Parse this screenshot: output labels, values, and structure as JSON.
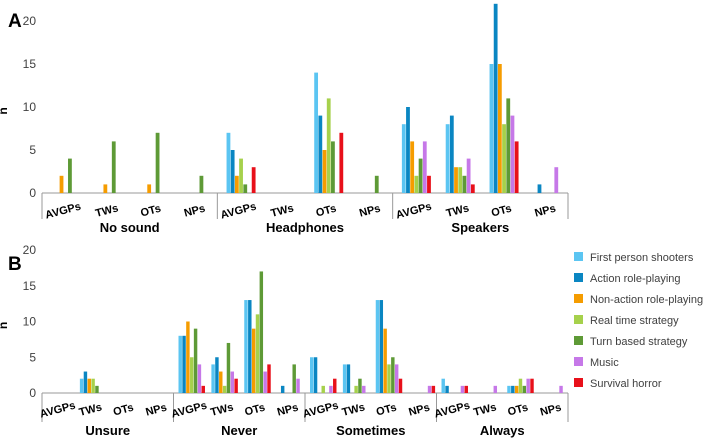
{
  "colors": {
    "series": [
      "#5BC5F2",
      "#0A86C2",
      "#F59C00",
      "#A6D14C",
      "#5E9A36",
      "#C678E8",
      "#E8101A"
    ],
    "axis": "#999999",
    "grid": "#d9d9d9",
    "text": "#404040",
    "heading": "#000000"
  },
  "chart_data": [
    {
      "panel_label": "A",
      "type": "bar",
      "ylabel": "n",
      "ylim": [
        0,
        20
      ],
      "yticks": [
        "0",
        "5",
        "10",
        "15",
        "20"
      ],
      "groups": [
        {
          "label": "No sound",
          "categories": [
            {
              "label": "AVGPs",
              "values": [
                0,
                0,
                2,
                0,
                4,
                0,
                0
              ]
            },
            {
              "label": "TWs",
              "values": [
                0,
                0,
                1,
                0,
                6,
                0,
                0
              ]
            },
            {
              "label": "OTs",
              "values": [
                0,
                0,
                1,
                0,
                7,
                0,
                0
              ]
            },
            {
              "label": "NPs",
              "values": [
                0,
                0,
                0,
                0,
                2,
                0,
                0
              ]
            }
          ]
        },
        {
          "label": "Headphones",
          "categories": [
            {
              "label": "AVGPs",
              "values": [
                7,
                5,
                2,
                4,
                1,
                0,
                3
              ]
            },
            {
              "label": "TWs",
              "values": [
                0,
                0,
                0,
                0,
                0,
                0,
                0
              ]
            },
            {
              "label": "OTs",
              "values": [
                14,
                9,
                5,
                11,
                6,
                0,
                7
              ]
            },
            {
              "label": "NPs",
              "values": [
                0,
                0,
                0,
                0,
                2,
                0,
                0
              ]
            }
          ]
        },
        {
          "label": "Speakers",
          "categories": [
            {
              "label": "AVGPs",
              "values": [
                8,
                10,
                6,
                2,
                4,
                6,
                2
              ]
            },
            {
              "label": "TWs",
              "values": [
                8,
                9,
                3,
                3,
                2,
                4,
                1
              ]
            },
            {
              "label": "OTs",
              "values": [
                15,
                22,
                15,
                8,
                11,
                9,
                6
              ]
            },
            {
              "label": "NPs",
              "values": [
                0,
                1,
                0,
                0,
                0,
                3,
                0
              ]
            }
          ]
        }
      ]
    },
    {
      "panel_label": "B",
      "type": "bar",
      "ylabel": "n",
      "ylim": [
        0,
        20
      ],
      "yticks": [
        "0",
        "5",
        "10",
        "15",
        "20"
      ],
      "legend_position": "right",
      "groups": [
        {
          "label": "Unsure",
          "categories": [
            {
              "label": "AVGPs",
              "values": [
                0,
                0,
                0,
                0,
                0,
                0,
                0
              ]
            },
            {
              "label": "TWs",
              "values": [
                2,
                3,
                2,
                2,
                1,
                0,
                0
              ]
            },
            {
              "label": "OTs",
              "values": [
                0,
                0,
                0,
                0,
                0,
                0,
                0
              ]
            },
            {
              "label": "NPs",
              "values": [
                0,
                0,
                0,
                0,
                0,
                0,
                0
              ]
            }
          ]
        },
        {
          "label": "Never",
          "categories": [
            {
              "label": "AVGPs",
              "values": [
                8,
                8,
                10,
                5,
                9,
                4,
                1
              ]
            },
            {
              "label": "TWs",
              "values": [
                4,
                5,
                3,
                1,
                7,
                3,
                2
              ]
            },
            {
              "label": "OTs",
              "values": [
                13,
                13,
                9,
                11,
                17,
                3,
                4
              ]
            },
            {
              "label": "NPs",
              "values": [
                0,
                1,
                0,
                0,
                4,
                2,
                0
              ]
            }
          ]
        },
        {
          "label": "Sometimes",
          "categories": [
            {
              "label": "AVGPs",
              "values": [
                5,
                5,
                0,
                1,
                0,
                1,
                2
              ]
            },
            {
              "label": "TWs",
              "values": [
                4,
                4,
                0,
                1,
                2,
                1,
                0
              ]
            },
            {
              "label": "OTs",
              "values": [
                13,
                13,
                9,
                4,
                5,
                4,
                2
              ]
            },
            {
              "label": "NPs",
              "values": [
                0,
                0,
                0,
                0,
                0,
                1,
                1
              ]
            }
          ]
        },
        {
          "label": "Always",
          "categories": [
            {
              "label": "AVGPs",
              "values": [
                2,
                1,
                0,
                0,
                0,
                1,
                1
              ]
            },
            {
              "label": "TWs",
              "values": [
                0,
                0,
                0,
                0,
                0,
                1,
                0
              ]
            },
            {
              "label": "OTs",
              "values": [
                1,
                1,
                1,
                2,
                1,
                2,
                2
              ]
            },
            {
              "label": "NPs",
              "values": [
                0,
                0,
                0,
                0,
                0,
                1,
                0
              ]
            }
          ]
        }
      ]
    }
  ],
  "legend": {
    "items": [
      "First person shooters",
      "Action role-playing",
      "Non-action role-playing",
      "Real time strategy",
      "Turn based strategy",
      "Music",
      "Survival horror"
    ]
  }
}
